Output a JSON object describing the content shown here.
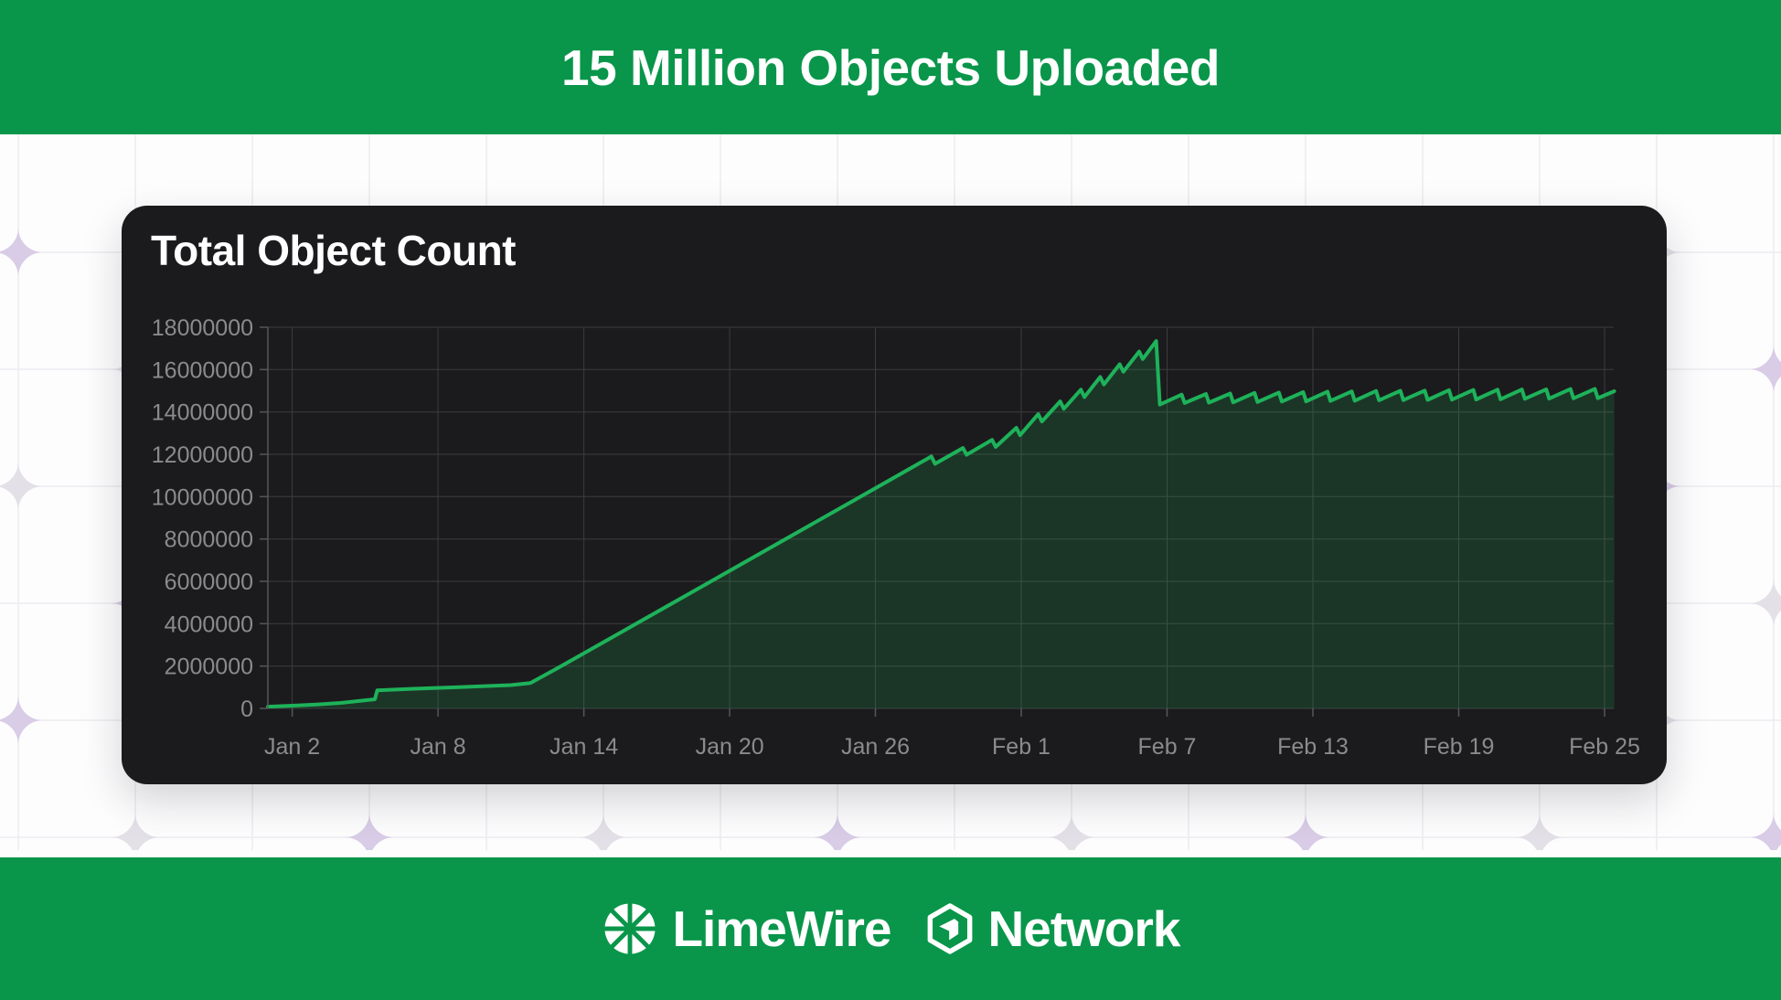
{
  "header": {
    "title": "15 Million Objects Uploaded"
  },
  "card": {
    "title": "Total Object Count"
  },
  "footer": {
    "brand": "LimeWire",
    "network": "Network"
  },
  "theme": {
    "banner_green": "#09964a",
    "card_bg": "#1b1b1d",
    "line_green": "#1eb25a",
    "area_fill": "rgba(30,178,90,0.18)",
    "grid_color": "#3c3c3f",
    "axis_color": "#56565a",
    "tick_label_color": "#8b8b8d",
    "pattern_line": "#ecebf0",
    "pattern_lavender": "#d9cce6",
    "pattern_gray": "#e3e0e7",
    "white": "#ffffff"
  },
  "chart_data": {
    "type": "area",
    "title": "Total Object Count",
    "xlabel": "",
    "ylabel": "",
    "grid": true,
    "legend": "none",
    "background": "dark",
    "ylim": [
      0,
      18000000
    ],
    "y_ticks": [
      0,
      2000000,
      4000000,
      6000000,
      8000000,
      10000000,
      12000000,
      14000000,
      16000000,
      18000000
    ],
    "x_domain_days": [
      0,
      55.4
    ],
    "x_ticks": [
      {
        "day": 1,
        "label": "Jan 2"
      },
      {
        "day": 7,
        "label": "Jan 8"
      },
      {
        "day": 13,
        "label": "Jan 14"
      },
      {
        "day": 19,
        "label": "Jan 20"
      },
      {
        "day": 25,
        "label": "Jan 26"
      },
      {
        "day": 31,
        "label": "Feb 1"
      },
      {
        "day": 37,
        "label": "Feb 7"
      },
      {
        "day": 43,
        "label": "Feb 13"
      },
      {
        "day": 49,
        "label": "Feb 19"
      },
      {
        "day": 55,
        "label": "Feb 25"
      }
    ],
    "series": [
      {
        "name": "Total Object Count",
        "color": "#1eb25a",
        "points": [
          [
            0,
            80000
          ],
          [
            1,
            130000
          ],
          [
            2,
            185000
          ],
          [
            3,
            260000
          ],
          [
            4.4,
            430000
          ],
          [
            4.5,
            850000
          ],
          [
            6,
            930000
          ],
          [
            8,
            1010000
          ],
          [
            10,
            1100000
          ],
          [
            10.8,
            1200000
          ],
          [
            12,
            1950000
          ],
          [
            14,
            3250000
          ],
          [
            16,
            4550000
          ],
          [
            18,
            5850000
          ],
          [
            20,
            7150000
          ],
          [
            22,
            8450000
          ],
          [
            24,
            9750000
          ],
          [
            26,
            11050000
          ],
          [
            27.3,
            11900000
          ],
          [
            27.45,
            11550000
          ],
          [
            28.6,
            12300000
          ],
          [
            28.75,
            11980000
          ],
          [
            29.8,
            12680000
          ],
          [
            29.95,
            12350000
          ],
          [
            30.8,
            13250000
          ],
          [
            30.95,
            12900000
          ],
          [
            31.7,
            13900000
          ],
          [
            31.85,
            13550000
          ],
          [
            32.6,
            14500000
          ],
          [
            32.75,
            14150000
          ],
          [
            33.45,
            15050000
          ],
          [
            33.6,
            14700000
          ],
          [
            34.25,
            15650000
          ],
          [
            34.4,
            15300000
          ],
          [
            35.05,
            16250000
          ],
          [
            35.2,
            15900000
          ],
          [
            35.85,
            16850000
          ],
          [
            36,
            16500000
          ],
          [
            36.55,
            17350000
          ],
          [
            36.7,
            14350000
          ],
          [
            37.6,
            14820000
          ],
          [
            37.72,
            14420000
          ],
          [
            38.6,
            14850000
          ],
          [
            38.72,
            14440000
          ],
          [
            39.6,
            14870000
          ],
          [
            39.72,
            14450000
          ],
          [
            40.6,
            14900000
          ],
          [
            40.72,
            14470000
          ],
          [
            41.6,
            14920000
          ],
          [
            41.72,
            14490000
          ],
          [
            42.6,
            14940000
          ],
          [
            42.72,
            14500000
          ],
          [
            43.6,
            14960000
          ],
          [
            43.72,
            14520000
          ],
          [
            44.6,
            14970000
          ],
          [
            44.72,
            14530000
          ],
          [
            45.6,
            14990000
          ],
          [
            45.72,
            14550000
          ],
          [
            46.6,
            15000000
          ],
          [
            46.72,
            14560000
          ],
          [
            47.6,
            15010000
          ],
          [
            47.72,
            14570000
          ],
          [
            48.6,
            15030000
          ],
          [
            48.72,
            14580000
          ],
          [
            49.6,
            15040000
          ],
          [
            49.72,
            14590000
          ],
          [
            50.6,
            15050000
          ],
          [
            50.72,
            14600000
          ],
          [
            51.6,
            15060000
          ],
          [
            51.72,
            14620000
          ],
          [
            52.6,
            15070000
          ],
          [
            52.72,
            14630000
          ],
          [
            53.6,
            15080000
          ],
          [
            53.72,
            14640000
          ],
          [
            54.6,
            15090000
          ],
          [
            54.72,
            14650000
          ],
          [
            55.4,
            14980000
          ]
        ]
      }
    ]
  }
}
